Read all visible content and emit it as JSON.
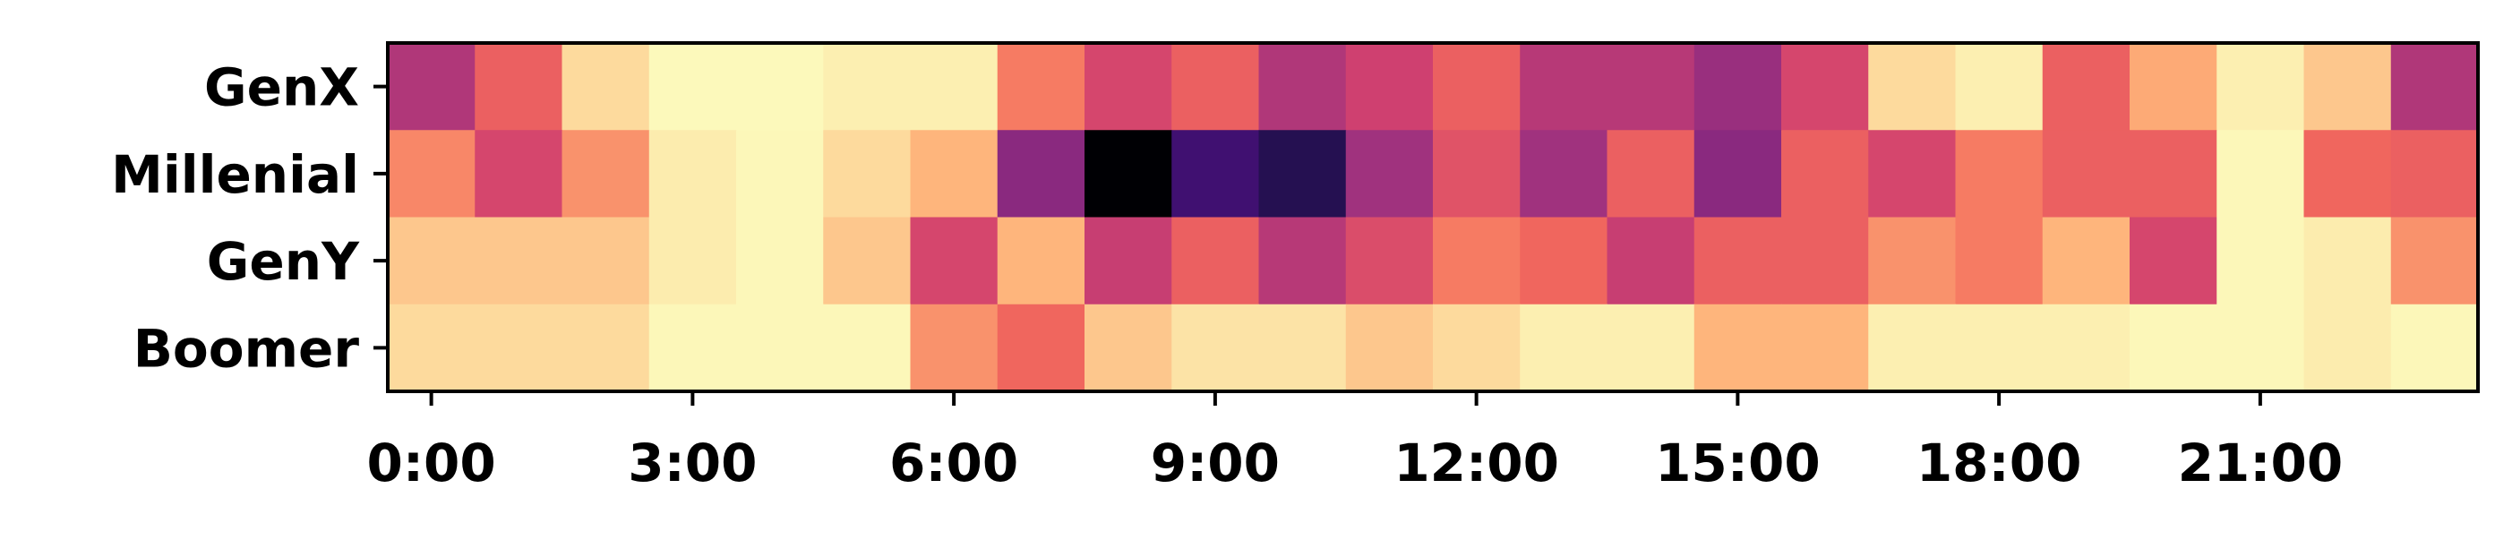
{
  "chart_data": {
    "type": "heatmap",
    "colormap": "magma_r",
    "value_range": [
      0,
      1
    ],
    "rows": [
      "GenX",
      "Millenial",
      "GenY",
      "Boomer"
    ],
    "columns": [
      "0:00",
      "1:00",
      "2:00",
      "3:00",
      "4:00",
      "5:00",
      "6:00",
      "7:00",
      "8:00",
      "9:00",
      "10:00",
      "11:00",
      "12:00",
      "13:00",
      "14:00",
      "15:00",
      "16:00",
      "17:00",
      "18:00",
      "19:00",
      "20:00",
      "21:00",
      "22:00",
      "23:00"
    ],
    "x_tick_labels": [
      "0:00",
      "3:00",
      "6:00",
      "9:00",
      "12:00",
      "15:00",
      "18:00",
      "21:00"
    ],
    "values": [
      [
        0.58,
        0.4,
        0.16,
        0.03,
        0.03,
        0.1,
        0.1,
        0.34,
        0.48,
        0.4,
        0.58,
        0.5,
        0.4,
        0.56,
        0.56,
        0.64,
        0.48,
        0.16,
        0.1,
        0.4,
        0.26,
        0.1,
        0.2,
        0.58
      ],
      [
        0.32,
        0.48,
        0.3,
        0.12,
        0.04,
        0.16,
        0.24,
        0.68,
        1.0,
        0.86,
        0.92,
        0.62,
        0.44,
        0.62,
        0.4,
        0.68,
        0.4,
        0.48,
        0.34,
        0.4,
        0.4,
        0.04,
        0.38,
        0.4
      ],
      [
        0.2,
        0.2,
        0.2,
        0.12,
        0.04,
        0.2,
        0.48,
        0.24,
        0.52,
        0.4,
        0.56,
        0.46,
        0.34,
        0.38,
        0.52,
        0.4,
        0.4,
        0.3,
        0.34,
        0.24,
        0.48,
        0.04,
        0.12,
        0.3
      ],
      [
        0.16,
        0.16,
        0.16,
        0.04,
        0.04,
        0.04,
        0.3,
        0.38,
        0.2,
        0.14,
        0.14,
        0.2,
        0.16,
        0.1,
        0.1,
        0.24,
        0.24,
        0.1,
        0.1,
        0.1,
        0.04,
        0.04,
        0.12,
        0.04
      ]
    ]
  }
}
